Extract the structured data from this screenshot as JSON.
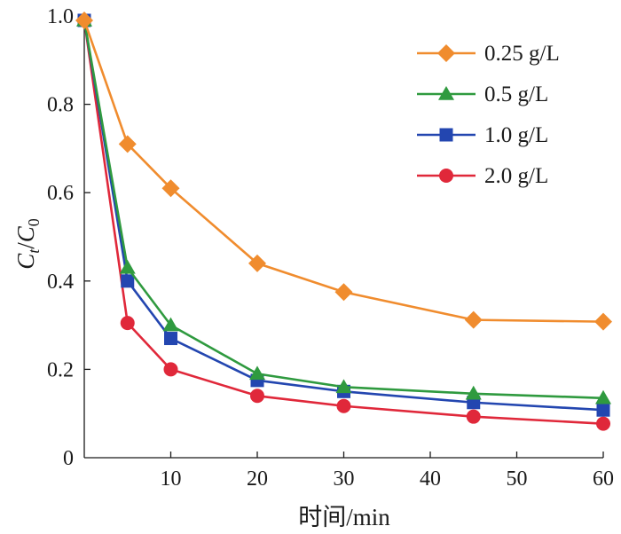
{
  "chart_data": {
    "type": "line",
    "xlabel": "时间/min",
    "ylabel": {
      "base": "C",
      "sub_numerator": "t",
      "sub_denominator": "0",
      "separator": "/"
    },
    "xlim": [
      0,
      60
    ],
    "ylim": [
      0,
      1.0
    ],
    "x_ticks": [
      10,
      20,
      30,
      40,
      50,
      60
    ],
    "x_tick_labels": [
      "10",
      "20",
      "30",
      "40",
      "50",
      "60"
    ],
    "y_ticks": [
      0,
      0.2,
      0.4,
      0.6,
      0.8,
      1.0
    ],
    "y_tick_labels": [
      "0",
      "0.2",
      "0.4",
      "0.6",
      "0.8",
      "1.0"
    ],
    "grid": false,
    "legend_position": "top-right",
    "x": [
      0,
      5,
      10,
      20,
      30,
      45,
      60
    ],
    "series": [
      {
        "name": "0.25 g/L",
        "marker": "diamond",
        "color": "#F08C2E",
        "values": [
          0.99,
          0.71,
          0.61,
          0.44,
          0.375,
          0.312,
          0.308
        ]
      },
      {
        "name": "0.5 g/L",
        "marker": "triangle",
        "color": "#2F9A3F",
        "values": [
          0.99,
          0.43,
          0.3,
          0.19,
          0.16,
          0.145,
          0.135
        ]
      },
      {
        "name": "1.0 g/L",
        "marker": "square",
        "color": "#2346B0",
        "values": [
          0.99,
          0.4,
          0.27,
          0.175,
          0.15,
          0.125,
          0.108
        ]
      },
      {
        "name": "2.0 g/L",
        "marker": "circle",
        "color": "#E0283A",
        "values": [
          0.99,
          0.305,
          0.2,
          0.14,
          0.117,
          0.093,
          0.077
        ]
      }
    ]
  }
}
